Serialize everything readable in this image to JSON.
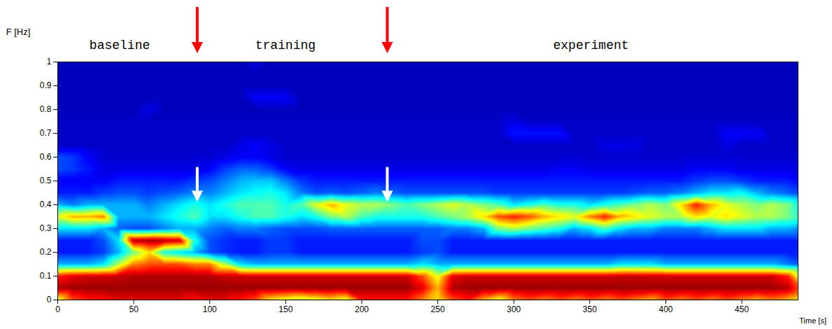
{
  "chart_data": {
    "type": "heatmap",
    "xlabel": "Time [s]",
    "ylabel": "F [Hz]",
    "xlim": [
      0,
      487
    ],
    "ylim": [
      0,
      1
    ],
    "xticks": [
      0,
      50,
      100,
      150,
      200,
      250,
      300,
      350,
      400,
      450
    ],
    "yticks": [
      0,
      0.1,
      0.2,
      0.3,
      0.4,
      0.5,
      0.6,
      0.7,
      0.8,
      0.9,
      1
    ],
    "zlim": [
      0,
      1
    ],
    "annotations": [
      {
        "text": "baseline",
        "x": 41
      },
      {
        "text": "training",
        "x": 150
      },
      {
        "text": "experiment",
        "x": 351
      }
    ],
    "arrows": [
      {
        "x": 92,
        "color": "red"
      },
      {
        "x": 217,
        "color": "red"
      },
      {
        "x": 92,
        "y": 0.41,
        "color": "white"
      },
      {
        "x": 217,
        "y": 0.41,
        "color": "white"
      }
    ],
    "x": [
      0,
      10,
      20,
      30,
      40,
      50,
      60,
      70,
      80,
      90,
      100,
      110,
      120,
      130,
      140,
      150,
      160,
      170,
      180,
      190,
      200,
      210,
      220,
      230,
      240,
      250,
      260,
      270,
      280,
      290,
      300,
      310,
      320,
      330,
      340,
      350,
      360,
      370,
      380,
      390,
      400,
      410,
      420,
      430,
      440,
      450,
      460,
      470,
      480,
      490
    ],
    "y": [
      0,
      0.05,
      0.1,
      0.15,
      0.2,
      0.25,
      0.3,
      0.35,
      0.4,
      0.45,
      0.5,
      0.55,
      0.6,
      0.65,
      0.7,
      0.75,
      0.8,
      0.85,
      0.9,
      0.95,
      1
    ],
    "values": [
      [
        0.6,
        0.8,
        0.85,
        0.85,
        0.9,
        0.9,
        0.9,
        0.9,
        0.9,
        0.85,
        0.9,
        0.9,
        0.85,
        0.8,
        0.65,
        0.6,
        0.55,
        0.6,
        0.65,
        0.6,
        0.85,
        0.85,
        0.85,
        0.85,
        0.75,
        0.65,
        0.8,
        0.85,
        0.7,
        0.6,
        0.75,
        0.8,
        0.75,
        0.8,
        0.75,
        0.8,
        0.75,
        0.8,
        0.75,
        0.7,
        0.8,
        0.75,
        0.8,
        0.75,
        0.8,
        0.75,
        0.7,
        0.75,
        0.7,
        0.6
      ],
      [
        0.95,
        0.97,
        0.97,
        0.97,
        0.97,
        0.97,
        0.97,
        0.97,
        0.97,
        0.97,
        0.97,
        0.97,
        0.97,
        0.97,
        0.97,
        0.97,
        0.97,
        0.97,
        0.97,
        0.97,
        0.97,
        0.97,
        0.97,
        0.97,
        0.9,
        0.7,
        0.95,
        0.97,
        0.97,
        0.97,
        0.97,
        0.97,
        0.97,
        0.97,
        0.97,
        0.97,
        0.97,
        0.97,
        0.97,
        0.97,
        0.97,
        0.97,
        0.97,
        0.97,
        0.97,
        0.97,
        0.97,
        0.97,
        0.95,
        0.75
      ],
      [
        0.85,
        0.9,
        0.92,
        0.92,
        0.93,
        0.95,
        0.95,
        0.95,
        0.95,
        0.95,
        0.95,
        0.93,
        0.92,
        0.92,
        0.92,
        0.92,
        0.92,
        0.92,
        0.92,
        0.92,
        0.92,
        0.92,
        0.92,
        0.92,
        0.8,
        0.6,
        0.9,
        0.92,
        0.92,
        0.92,
        0.92,
        0.92,
        0.92,
        0.92,
        0.92,
        0.92,
        0.92,
        0.93,
        0.93,
        0.92,
        0.92,
        0.92,
        0.92,
        0.92,
        0.92,
        0.92,
        0.92,
        0.92,
        0.85,
        0.5
      ],
      [
        0.3,
        0.3,
        0.3,
        0.35,
        0.55,
        0.75,
        0.8,
        0.8,
        0.8,
        0.75,
        0.75,
        0.55,
        0.35,
        0.3,
        0.3,
        0.3,
        0.3,
        0.3,
        0.3,
        0.3,
        0.3,
        0.3,
        0.3,
        0.3,
        0.35,
        0.3,
        0.3,
        0.3,
        0.3,
        0.3,
        0.3,
        0.3,
        0.3,
        0.3,
        0.3,
        0.3,
        0.3,
        0.35,
        0.35,
        0.35,
        0.3,
        0.3,
        0.3,
        0.3,
        0.3,
        0.3,
        0.3,
        0.3,
        0.25,
        0.2
      ],
      [
        0.15,
        0.15,
        0.15,
        0.18,
        0.3,
        0.5,
        0.65,
        0.4,
        0.35,
        0.3,
        0.2,
        0.17,
        0.15,
        0.15,
        0.18,
        0.18,
        0.15,
        0.15,
        0.15,
        0.15,
        0.15,
        0.15,
        0.15,
        0.15,
        0.18,
        0.2,
        0.15,
        0.15,
        0.15,
        0.15,
        0.15,
        0.15,
        0.15,
        0.15,
        0.15,
        0.15,
        0.15,
        0.15,
        0.15,
        0.15,
        0.15,
        0.15,
        0.15,
        0.15,
        0.15,
        0.15,
        0.15,
        0.15,
        0.15,
        0.15
      ],
      [
        0.15,
        0.15,
        0.15,
        0.2,
        0.35,
        0.95,
        0.97,
        0.95,
        0.92,
        0.4,
        0.2,
        0.17,
        0.15,
        0.15,
        0.18,
        0.18,
        0.15,
        0.15,
        0.15,
        0.15,
        0.15,
        0.15,
        0.15,
        0.15,
        0.2,
        0.2,
        0.15,
        0.15,
        0.15,
        0.15,
        0.15,
        0.15,
        0.15,
        0.15,
        0.15,
        0.15,
        0.15,
        0.15,
        0.15,
        0.15,
        0.15,
        0.15,
        0.15,
        0.15,
        0.15,
        0.15,
        0.15,
        0.15,
        0.15,
        0.15
      ],
      [
        0.35,
        0.35,
        0.35,
        0.3,
        0.22,
        0.2,
        0.2,
        0.25,
        0.3,
        0.3,
        0.25,
        0.22,
        0.25,
        0.25,
        0.22,
        0.2,
        0.2,
        0.2,
        0.22,
        0.22,
        0.22,
        0.22,
        0.22,
        0.22,
        0.22,
        0.22,
        0.25,
        0.25,
        0.3,
        0.5,
        0.55,
        0.5,
        0.45,
        0.4,
        0.3,
        0.35,
        0.45,
        0.35,
        0.3,
        0.3,
        0.25,
        0.25,
        0.25,
        0.3,
        0.35,
        0.35,
        0.35,
        0.3,
        0.3,
        0.25
      ],
      [
        0.6,
        0.7,
        0.7,
        0.75,
        0.3,
        0.3,
        0.3,
        0.35,
        0.4,
        0.45,
        0.35,
        0.35,
        0.4,
        0.45,
        0.45,
        0.4,
        0.35,
        0.4,
        0.5,
        0.55,
        0.45,
        0.4,
        0.4,
        0.4,
        0.4,
        0.45,
        0.5,
        0.55,
        0.65,
        0.8,
        0.85,
        0.8,
        0.7,
        0.65,
        0.6,
        0.75,
        0.85,
        0.7,
        0.65,
        0.6,
        0.55,
        0.55,
        0.65,
        0.6,
        0.65,
        0.6,
        0.55,
        0.55,
        0.5,
        0.4
      ],
      [
        0.3,
        0.25,
        0.3,
        0.3,
        0.3,
        0.3,
        0.25,
        0.3,
        0.35,
        0.4,
        0.35,
        0.4,
        0.45,
        0.45,
        0.45,
        0.4,
        0.45,
        0.6,
        0.7,
        0.6,
        0.55,
        0.55,
        0.5,
        0.45,
        0.5,
        0.55,
        0.6,
        0.55,
        0.5,
        0.45,
        0.35,
        0.4,
        0.45,
        0.4,
        0.4,
        0.35,
        0.4,
        0.45,
        0.5,
        0.55,
        0.5,
        0.65,
        0.85,
        0.7,
        0.6,
        0.55,
        0.5,
        0.55,
        0.5,
        0.35
      ],
      [
        0.15,
        0.15,
        0.15,
        0.18,
        0.2,
        0.2,
        0.18,
        0.2,
        0.22,
        0.25,
        0.25,
        0.3,
        0.35,
        0.38,
        0.4,
        0.35,
        0.25,
        0.2,
        0.22,
        0.2,
        0.22,
        0.25,
        0.22,
        0.2,
        0.2,
        0.2,
        0.2,
        0.2,
        0.2,
        0.18,
        0.18,
        0.18,
        0.18,
        0.18,
        0.18,
        0.18,
        0.18,
        0.18,
        0.2,
        0.22,
        0.22,
        0.25,
        0.3,
        0.35,
        0.35,
        0.38,
        0.3,
        0.25,
        0.22,
        0.18
      ],
      [
        0.12,
        0.12,
        0.12,
        0.12,
        0.15,
        0.15,
        0.15,
        0.15,
        0.15,
        0.18,
        0.2,
        0.25,
        0.3,
        0.32,
        0.32,
        0.25,
        0.18,
        0.15,
        0.15,
        0.15,
        0.15,
        0.15,
        0.15,
        0.15,
        0.15,
        0.15,
        0.15,
        0.15,
        0.15,
        0.15,
        0.15,
        0.15,
        0.15,
        0.15,
        0.15,
        0.15,
        0.15,
        0.15,
        0.15,
        0.15,
        0.15,
        0.15,
        0.18,
        0.2,
        0.2,
        0.18,
        0.15,
        0.15,
        0.15,
        0.12
      ],
      [
        0.2,
        0.18,
        0.15,
        0.1,
        0.1,
        0.1,
        0.1,
        0.1,
        0.1,
        0.1,
        0.12,
        0.18,
        0.22,
        0.22,
        0.18,
        0.12,
        0.1,
        0.1,
        0.1,
        0.1,
        0.1,
        0.1,
        0.1,
        0.1,
        0.1,
        0.1,
        0.1,
        0.1,
        0.1,
        0.1,
        0.1,
        0.1,
        0.1,
        0.12,
        0.12,
        0.1,
        0.1,
        0.1,
        0.1,
        0.1,
        0.1,
        0.1,
        0.12,
        0.12,
        0.12,
        0.1,
        0.1,
        0.1,
        0.1,
        0.1
      ],
      [
        0.2,
        0.18,
        0.12,
        0.08,
        0.08,
        0.08,
        0.08,
        0.08,
        0.08,
        0.08,
        0.08,
        0.1,
        0.12,
        0.12,
        0.1,
        0.08,
        0.08,
        0.08,
        0.08,
        0.08,
        0.08,
        0.08,
        0.08,
        0.08,
        0.08,
        0.08,
        0.08,
        0.08,
        0.08,
        0.08,
        0.08,
        0.08,
        0.08,
        0.08,
        0.08,
        0.08,
        0.08,
        0.08,
        0.08,
        0.08,
        0.08,
        0.08,
        0.08,
        0.08,
        0.08,
        0.08,
        0.08,
        0.08,
        0.08,
        0.08
      ],
      [
        0.07,
        0.07,
        0.07,
        0.07,
        0.07,
        0.07,
        0.07,
        0.07,
        0.07,
        0.07,
        0.07,
        0.07,
        0.1,
        0.12,
        0.1,
        0.07,
        0.07,
        0.07,
        0.07,
        0.07,
        0.07,
        0.07,
        0.07,
        0.07,
        0.07,
        0.07,
        0.07,
        0.07,
        0.07,
        0.07,
        0.07,
        0.07,
        0.07,
        0.07,
        0.07,
        0.07,
        0.1,
        0.1,
        0.1,
        0.07,
        0.07,
        0.07,
        0.07,
        0.07,
        0.1,
        0.07,
        0.07,
        0.07,
        0.07,
        0.07
      ],
      [
        0.07,
        0.07,
        0.07,
        0.07,
        0.07,
        0.07,
        0.07,
        0.07,
        0.07,
        0.07,
        0.07,
        0.07,
        0.07,
        0.07,
        0.07,
        0.07,
        0.07,
        0.07,
        0.07,
        0.07,
        0.07,
        0.07,
        0.07,
        0.07,
        0.07,
        0.07,
        0.07,
        0.07,
        0.07,
        0.07,
        0.14,
        0.14,
        0.14,
        0.14,
        0.07,
        0.07,
        0.07,
        0.07,
        0.07,
        0.07,
        0.07,
        0.07,
        0.07,
        0.07,
        0.12,
        0.12,
        0.12,
        0.07,
        0.07,
        0.07
      ],
      [
        0.07,
        0.07,
        0.07,
        0.07,
        0.07,
        0.07,
        0.07,
        0.07,
        0.07,
        0.07,
        0.07,
        0.07,
        0.07,
        0.07,
        0.07,
        0.07,
        0.07,
        0.07,
        0.07,
        0.07,
        0.07,
        0.07,
        0.07,
        0.07,
        0.07,
        0.07,
        0.07,
        0.07,
        0.07,
        0.07,
        0.1,
        0.07,
        0.07,
        0.07,
        0.07,
        0.07,
        0.07,
        0.07,
        0.07,
        0.07,
        0.07,
        0.07,
        0.07,
        0.07,
        0.07,
        0.07,
        0.07,
        0.07,
        0.07,
        0.07
      ],
      [
        0.06,
        0.06,
        0.06,
        0.06,
        0.06,
        0.06,
        0.1,
        0.06,
        0.06,
        0.06,
        0.06,
        0.06,
        0.06,
        0.06,
        0.06,
        0.06,
        0.06,
        0.06,
        0.06,
        0.06,
        0.06,
        0.06,
        0.06,
        0.06,
        0.06,
        0.06,
        0.06,
        0.06,
        0.06,
        0.06,
        0.06,
        0.06,
        0.06,
        0.06,
        0.06,
        0.06,
        0.06,
        0.06,
        0.06,
        0.06,
        0.06,
        0.06,
        0.06,
        0.06,
        0.06,
        0.06,
        0.06,
        0.06,
        0.06,
        0.06
      ],
      [
        0.06,
        0.06,
        0.06,
        0.06,
        0.06,
        0.06,
        0.06,
        0.06,
        0.06,
        0.06,
        0.06,
        0.06,
        0.06,
        0.12,
        0.12,
        0.12,
        0.06,
        0.06,
        0.06,
        0.06,
        0.06,
        0.06,
        0.06,
        0.06,
        0.06,
        0.06,
        0.06,
        0.06,
        0.06,
        0.06,
        0.06,
        0.06,
        0.06,
        0.06,
        0.06,
        0.06,
        0.06,
        0.06,
        0.06,
        0.06,
        0.06,
        0.06,
        0.06,
        0.06,
        0.06,
        0.06,
        0.06,
        0.06,
        0.06,
        0.06
      ],
      [
        0.06,
        0.06,
        0.06,
        0.06,
        0.06,
        0.06,
        0.06,
        0.06,
        0.06,
        0.06,
        0.06,
        0.06,
        0.06,
        0.06,
        0.06,
        0.06,
        0.06,
        0.06,
        0.06,
        0.06,
        0.06,
        0.06,
        0.06,
        0.06,
        0.06,
        0.06,
        0.06,
        0.06,
        0.06,
        0.06,
        0.06,
        0.06,
        0.06,
        0.06,
        0.06,
        0.06,
        0.06,
        0.06,
        0.06,
        0.06,
        0.06,
        0.06,
        0.06,
        0.06,
        0.06,
        0.06,
        0.06,
        0.06,
        0.06,
        0.06
      ],
      [
        0.06,
        0.06,
        0.06,
        0.06,
        0.06,
        0.06,
        0.06,
        0.06,
        0.06,
        0.06,
        0.06,
        0.06,
        0.06,
        0.06,
        0.06,
        0.06,
        0.06,
        0.06,
        0.06,
        0.06,
        0.06,
        0.06,
        0.06,
        0.06,
        0.06,
        0.06,
        0.06,
        0.06,
        0.06,
        0.06,
        0.06,
        0.06,
        0.06,
        0.06,
        0.06,
        0.06,
        0.06,
        0.06,
        0.06,
        0.06,
        0.06,
        0.06,
        0.06,
        0.06,
        0.06,
        0.06,
        0.06,
        0.06,
        0.06,
        0.06
      ],
      [
        0.06,
        0.06,
        0.06,
        0.06,
        0.06,
        0.06,
        0.06,
        0.06,
        0.06,
        0.06,
        0.06,
        0.06,
        0.06,
        0.1,
        0.06,
        0.06,
        0.06,
        0.06,
        0.06,
        0.06,
        0.06,
        0.06,
        0.06,
        0.06,
        0.06,
        0.06,
        0.06,
        0.06,
        0.06,
        0.06,
        0.06,
        0.06,
        0.06,
        0.06,
        0.06,
        0.06,
        0.06,
        0.06,
        0.06,
        0.06,
        0.06,
        0.06,
        0.06,
        0.06,
        0.06,
        0.06,
        0.06,
        0.06,
        0.06,
        0.06
      ]
    ]
  }
}
